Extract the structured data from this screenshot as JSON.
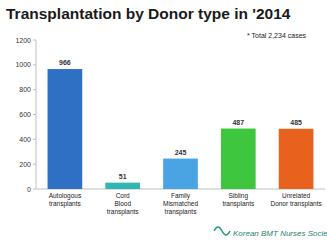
{
  "chart_data": {
    "type": "bar",
    "title": "Transplantation by Donor type in '2014",
    "annotations": [
      "* Total  2,234 cases",
      "Korean BMT Nurses Society"
    ],
    "categories": [
      "Autologous\ntransplants",
      "Cord\nBlood\ntransplants",
      "Family\nMismatched\ntransplants",
      "Sibling\ntransplants",
      "Unrelated\nDonor transplants"
    ],
    "values": [
      966,
      51,
      245,
      487,
      485
    ],
    "colors": [
      "#2f6fc4",
      "#2fb7b4",
      "#4aa3e2",
      "#3ec63e",
      "#e8621e"
    ],
    "ylim": [
      0,
      1200
    ],
    "yticks": [
      0,
      200,
      400,
      600,
      800,
      1000,
      1200
    ],
    "grid": false,
    "data_labels": true
  }
}
